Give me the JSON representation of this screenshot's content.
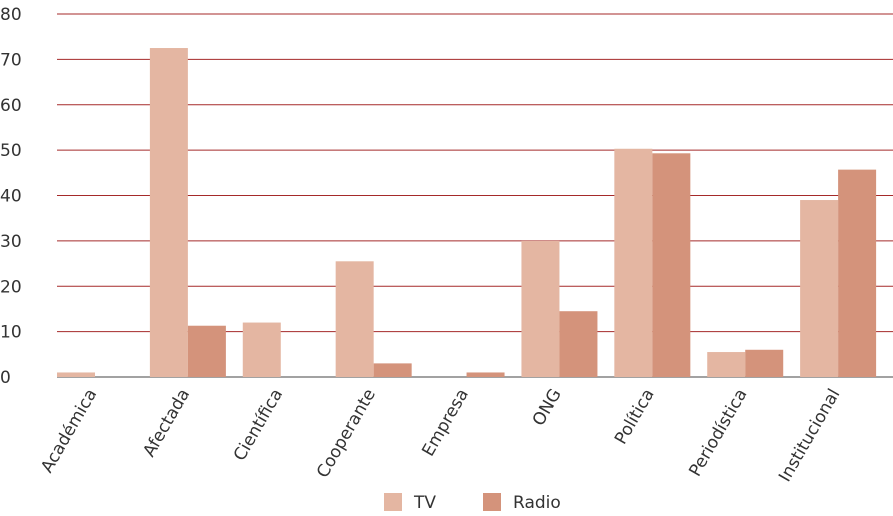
{
  "chart_data": {
    "type": "bar",
    "categories": [
      "Académica",
      "Afectada",
      "Científica",
      "Cooperante",
      "Empresa",
      "ONG",
      "Política",
      "Periodística",
      "Institucional"
    ],
    "series": [
      {
        "name": "TV",
        "values": [
          1,
          72.5,
          12,
          25.5,
          0,
          30,
          50.3,
          5.5,
          39
        ],
        "color": "#e4b6a2"
      },
      {
        "name": "Radio",
        "values": [
          0,
          11.3,
          0,
          3,
          1,
          14.5,
          49.3,
          6,
          45.7
        ],
        "color": "#d4937b"
      }
    ],
    "ylim": [
      0,
      80
    ],
    "yticks": [
      0,
      10,
      20,
      30,
      40,
      50,
      60,
      70,
      80
    ],
    "grid": true,
    "grid_color": "#a52a2a",
    "legend_position": "bottom",
    "title": "",
    "xlabel": "",
    "ylabel": ""
  }
}
